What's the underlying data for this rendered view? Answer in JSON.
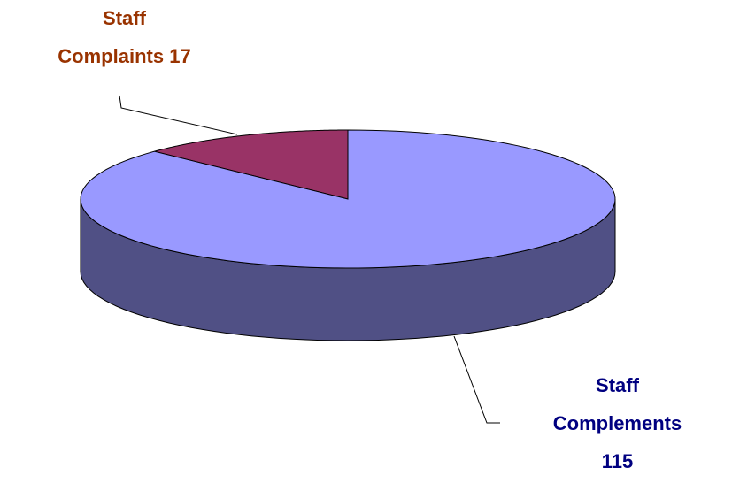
{
  "chart_data": {
    "type": "pie3d",
    "categories": [
      "Staff Complaints",
      "Staff Complements"
    ],
    "values": [
      17,
      115
    ],
    "colors": [
      "#993366",
      "#9999ff"
    ],
    "label_colors": [
      "#993300",
      "#000080"
    ]
  }
}
